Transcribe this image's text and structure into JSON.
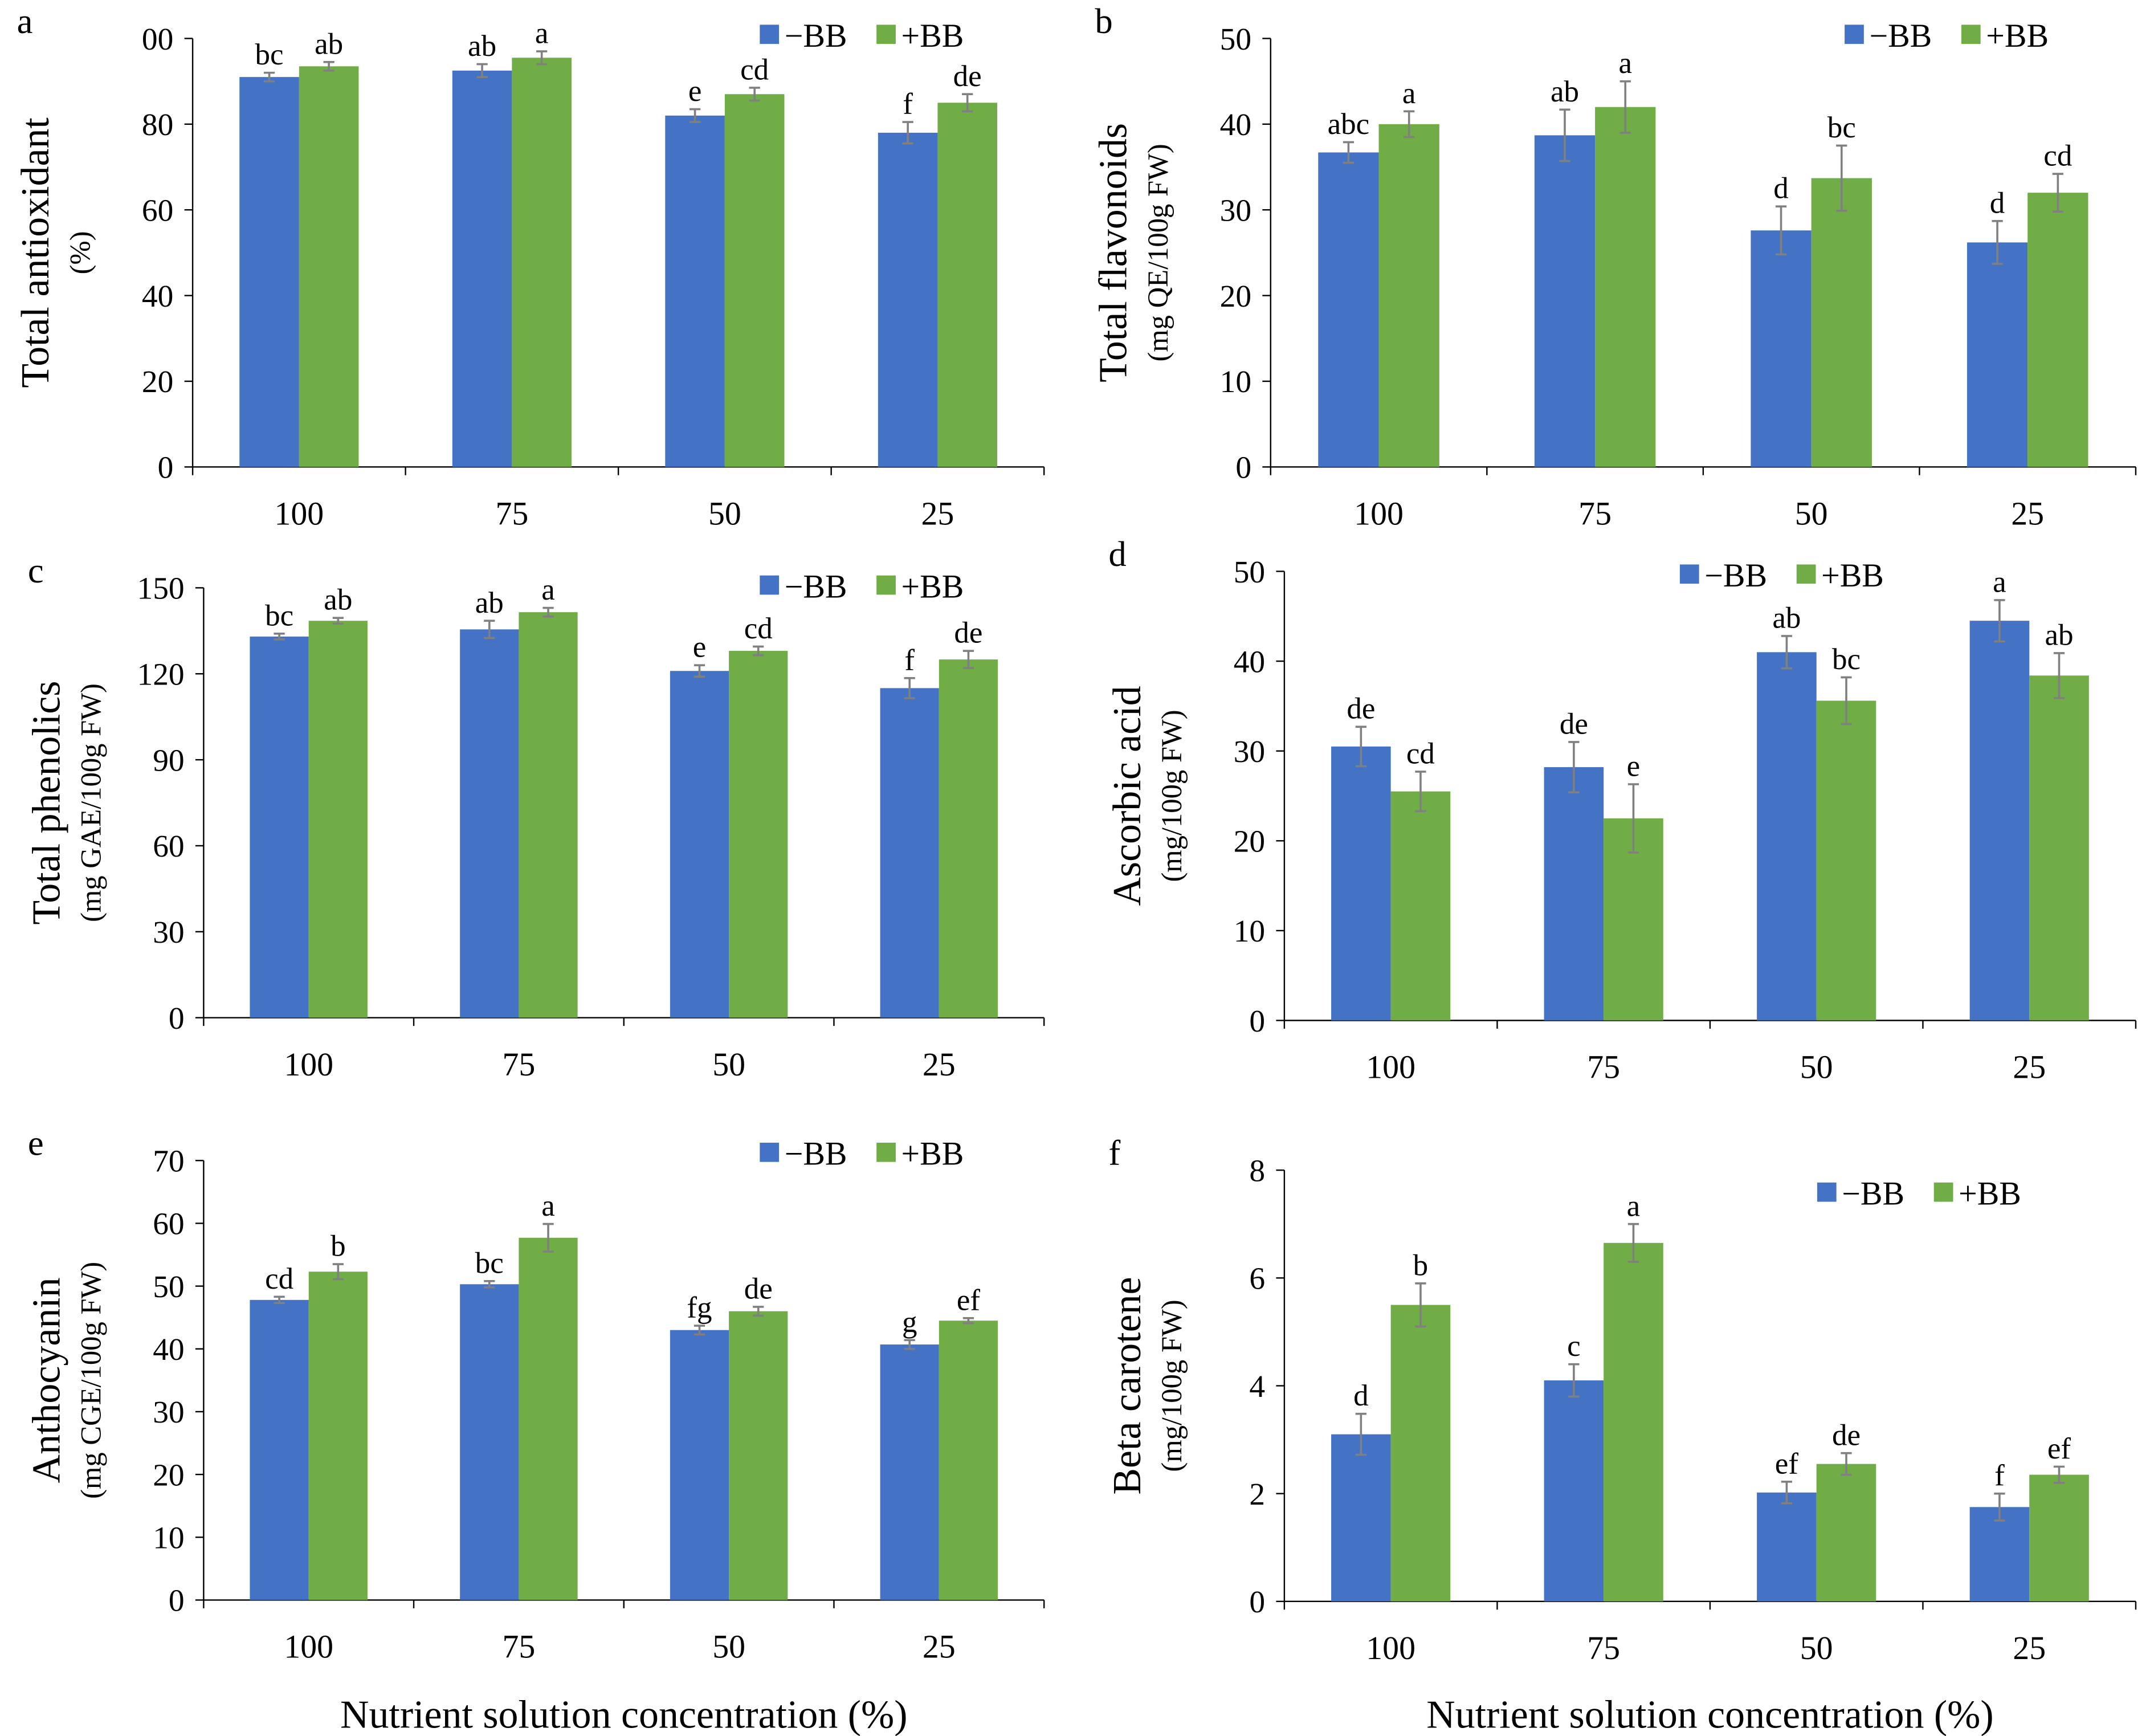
{
  "chart_data": [
    {
      "type": "bar",
      "panel": "a",
      "ylabel": [
        "Total antioxidant",
        "(%)"
      ],
      "categories": [
        "100",
        "75",
        "50",
        "25"
      ],
      "ylim": [
        0,
        100
      ],
      "yticks": [
        0,
        20,
        40,
        60,
        80,
        {
          "value": 100,
          "label": "00"
        }
      ],
      "series": [
        {
          "name": "−BB",
          "color": "#4472c4",
          "values": [
            91,
            92.5,
            82,
            78
          ],
          "errors": [
            1,
            1.5,
            1.5,
            2.5
          ],
          "letters": [
            "bc",
            "ab",
            "e",
            "f"
          ]
        },
        {
          "name": "+BB",
          "color": "#70ad47",
          "values": [
            93.5,
            95.5,
            87,
            85
          ],
          "errors": [
            1,
            1.5,
            1.5,
            2
          ],
          "letters": [
            "ab",
            "a",
            "cd",
            "de"
          ]
        }
      ]
    },
    {
      "type": "bar",
      "panel": "b",
      "ylabel": [
        "Total flavonoids",
        "(mg QE/100g FW)"
      ],
      "categories": [
        "100",
        "75",
        "50",
        "25"
      ],
      "ylim": [
        0,
        50
      ],
      "yticks": [
        0,
        10,
        20,
        30,
        40,
        50
      ],
      "series": [
        {
          "name": "−BB",
          "color": "#4472c4",
          "values": [
            36.7,
            38.7,
            27.6,
            26.2
          ],
          "errors": [
            1.2,
            3,
            2.8,
            2.5
          ],
          "letters": [
            "abc",
            "ab",
            "d",
            "d"
          ]
        },
        {
          "name": "+BB",
          "color": "#70ad47",
          "values": [
            40,
            42,
            33.7,
            32
          ],
          "errors": [
            1.5,
            3,
            3.8,
            2.2
          ],
          "letters": [
            "a",
            "a",
            "bc",
            "cd"
          ]
        }
      ]
    },
    {
      "type": "bar",
      "panel": "c",
      "ylabel": [
        "Total phenolics",
        "(mg GAE/100g FW)"
      ],
      "categories": [
        "100",
        "75",
        "50",
        "25"
      ],
      "ylim": [
        0,
        150
      ],
      "yticks": [
        0,
        30,
        60,
        90,
        120,
        150
      ],
      "series": [
        {
          "name": "−BB",
          "color": "#4472c4",
          "values": [
            133,
            135.5,
            121,
            115
          ],
          "errors": [
            1,
            3,
            2,
            3.5
          ],
          "letters": [
            "bc",
            "ab",
            "e",
            "f"
          ]
        },
        {
          "name": "+BB",
          "color": "#70ad47",
          "values": [
            138.5,
            141.5,
            128,
            125
          ],
          "errors": [
            1,
            1.5,
            1.5,
            3
          ],
          "letters": [
            "ab",
            "a",
            "cd",
            "de"
          ]
        }
      ]
    },
    {
      "type": "bar",
      "panel": "d",
      "ylabel": [
        "Ascorbic acid",
        "(mg/100g FW)"
      ],
      "categories": [
        "100",
        "75",
        "50",
        "25"
      ],
      "ylim": [
        0,
        50
      ],
      "yticks": [
        0,
        10,
        20,
        30,
        40,
        50
      ],
      "series": [
        {
          "name": "−BB",
          "color": "#4472c4",
          "values": [
            30.5,
            28.2,
            41,
            44.5
          ],
          "errors": [
            2.2,
            2.8,
            1.8,
            2.3
          ],
          "letters": [
            "de",
            "de",
            "ab",
            "a"
          ]
        },
        {
          "name": "+BB",
          "color": "#70ad47",
          "values": [
            25.5,
            22.5,
            35.6,
            38.4
          ],
          "errors": [
            2.2,
            3.8,
            2.6,
            2.5
          ],
          "letters": [
            "cd",
            "e",
            "bc",
            "ab"
          ]
        }
      ]
    },
    {
      "type": "bar",
      "panel": "e",
      "ylabel": [
        "Anthocyanin",
        "(mg CGE/100g FW)"
      ],
      "xlabel": "Nutrient solution concentration (%)",
      "categories": [
        "100",
        "75",
        "50",
        "25"
      ],
      "ylim": [
        0,
        70
      ],
      "yticks": [
        0,
        10,
        20,
        30,
        40,
        50,
        60,
        70
      ],
      "series": [
        {
          "name": "−BB",
          "color": "#4472c4",
          "values": [
            47.8,
            50.3,
            43,
            40.7
          ],
          "errors": [
            0.5,
            0.5,
            0.7,
            0.7
          ],
          "letters": [
            "cd",
            "bc",
            "fg",
            "g"
          ]
        },
        {
          "name": "+BB",
          "color": "#70ad47",
          "values": [
            52.3,
            57.7,
            46,
            44.5
          ],
          "errors": [
            1.2,
            2.2,
            0.7,
            0.4
          ],
          "letters": [
            "b",
            "a",
            "de",
            "ef"
          ]
        }
      ]
    },
    {
      "type": "bar",
      "panel": "f",
      "ylabel": [
        "Beta carotene",
        "(mg/100g FW)"
      ],
      "xlabel": "Nutrient solution concentration (%)",
      "categories": [
        "100",
        "75",
        "50",
        "25"
      ],
      "ylim": [
        0,
        8
      ],
      "yticks": [
        0,
        2,
        4,
        6,
        8
      ],
      "series": [
        {
          "name": "−BB",
          "color": "#4472c4",
          "values": [
            3.1,
            4.1,
            2.02,
            1.75
          ],
          "errors": [
            0.38,
            0.3,
            0.2,
            0.25
          ],
          "letters": [
            "d",
            "c",
            "ef",
            "f"
          ]
        },
        {
          "name": "+BB",
          "color": "#70ad47",
          "values": [
            5.5,
            6.65,
            2.55,
            2.35
          ],
          "errors": [
            0.4,
            0.35,
            0.2,
            0.15
          ],
          "letters": [
            "b",
            "a",
            "de",
            "ef"
          ]
        }
      ]
    }
  ]
}
